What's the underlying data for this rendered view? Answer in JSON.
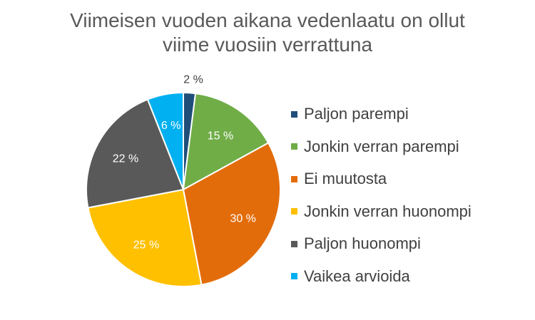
{
  "chart_data": {
    "type": "pie",
    "title": "Viimeisen vuoden aikana vedenlaatu on ollut viime vuosiin verrattuna",
    "title_lines": [
      "Viimeisen vuoden aikana vedenlaatu on ollut",
      "viime vuosiin verrattuna"
    ],
    "categories": [
      "Paljon parempi",
      "Jonkin verran parempi",
      "Ei muutosta",
      "Jonkin verran huonompi",
      "Paljon huonompi",
      "Vaikea arvioida"
    ],
    "values": [
      2,
      15,
      30,
      25,
      22,
      6
    ],
    "value_labels": [
      "2 %",
      "15 %",
      "30 %",
      "25 %",
      "22 %",
      "6 %"
    ],
    "colors": [
      "#1f4e79",
      "#70ad47",
      "#e36c0a",
      "#ffc000",
      "#595959",
      "#00b0f0"
    ],
    "legend_position": "right",
    "start_angle_deg": 0,
    "direction": "clockwise"
  }
}
